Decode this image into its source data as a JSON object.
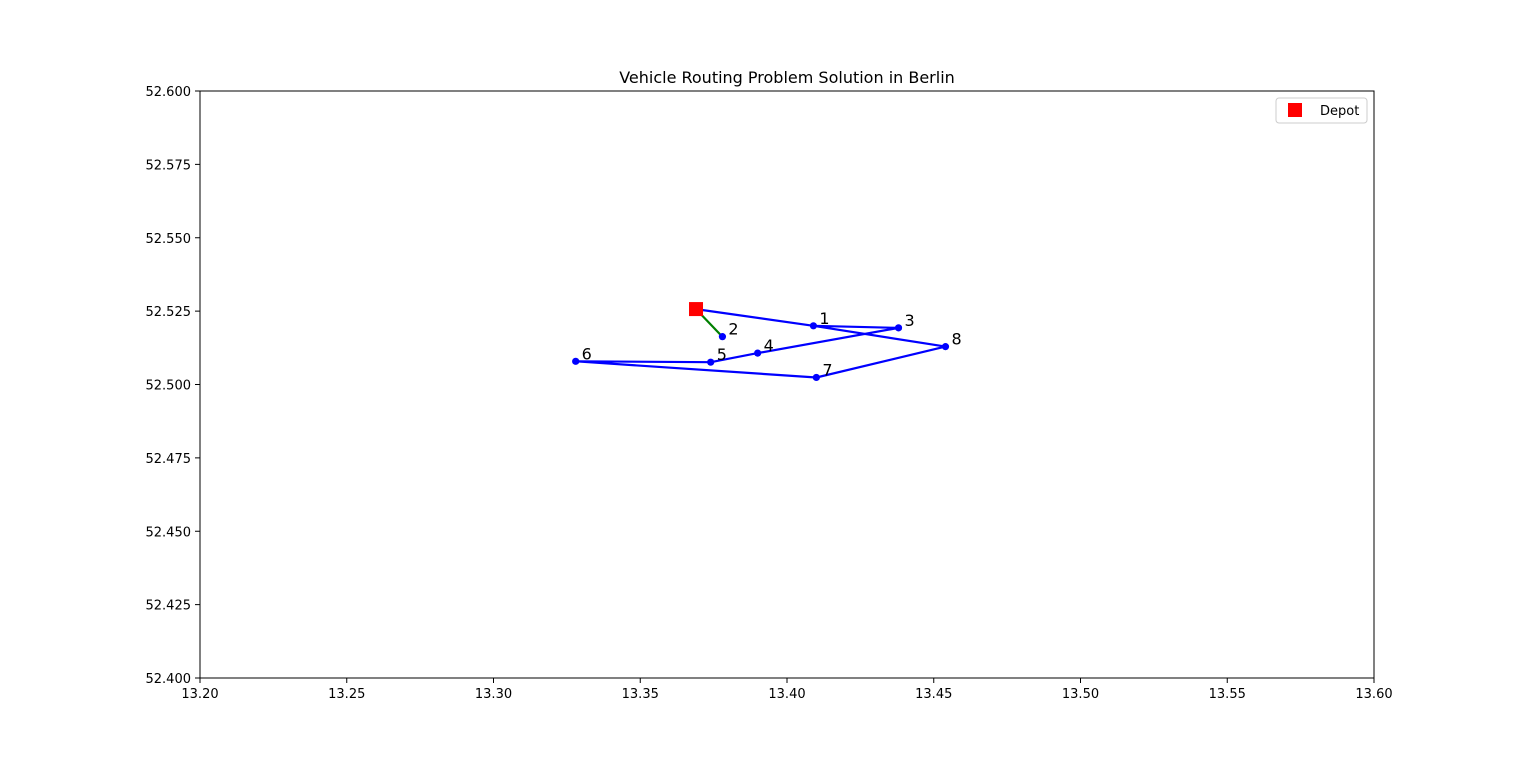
{
  "chart_data": {
    "type": "scatter",
    "title": "Vehicle Routing Problem Solution in Berlin",
    "xlabel": "",
    "ylabel": "",
    "xlim": [
      13.2,
      13.6
    ],
    "ylim": [
      52.4,
      52.6
    ],
    "xticks": [
      13.2,
      13.25,
      13.3,
      13.35,
      13.4,
      13.45,
      13.5,
      13.55,
      13.6
    ],
    "xtick_labels": [
      "13.20",
      "13.25",
      "13.30",
      "13.35",
      "13.40",
      "13.45",
      "13.50",
      "13.55",
      "13.60"
    ],
    "yticks": [
      52.4,
      52.425,
      52.45,
      52.475,
      52.5,
      52.525,
      52.55,
      52.575,
      52.6
    ],
    "ytick_labels": [
      "52.400",
      "52.425",
      "52.450",
      "52.475",
      "52.500",
      "52.525",
      "52.550",
      "52.575",
      "52.600"
    ],
    "grid": false,
    "legend": {
      "position": "top-right",
      "entries": [
        {
          "label": "Depot",
          "color": "#ff0000",
          "marker": "square"
        }
      ]
    },
    "depot": {
      "x": 13.369,
      "y": 52.5257
    },
    "points": [
      {
        "label": "1",
        "x": 13.409,
        "y": 52.52
      },
      {
        "label": "2",
        "x": 13.378,
        "y": 52.5163
      },
      {
        "label": "3",
        "x": 13.438,
        "y": 52.5193
      },
      {
        "label": "4",
        "x": 13.39,
        "y": 52.5107
      },
      {
        "label": "5",
        "x": 13.374,
        "y": 52.5076
      },
      {
        "label": "6",
        "x": 13.328,
        "y": 52.5079
      },
      {
        "label": "7",
        "x": 13.41,
        "y": 52.5024
      },
      {
        "label": "8",
        "x": 13.454,
        "y": 52.5129
      }
    ],
    "routes": [
      {
        "color": "#0000ff",
        "stops": [
          "depot",
          "1",
          "3",
          "4",
          "5",
          "6",
          "7",
          "8",
          "1",
          "depot"
        ]
      },
      {
        "color": "#008000",
        "stops": [
          "depot",
          "2",
          "depot"
        ]
      }
    ],
    "point_color": "#0000ff"
  }
}
